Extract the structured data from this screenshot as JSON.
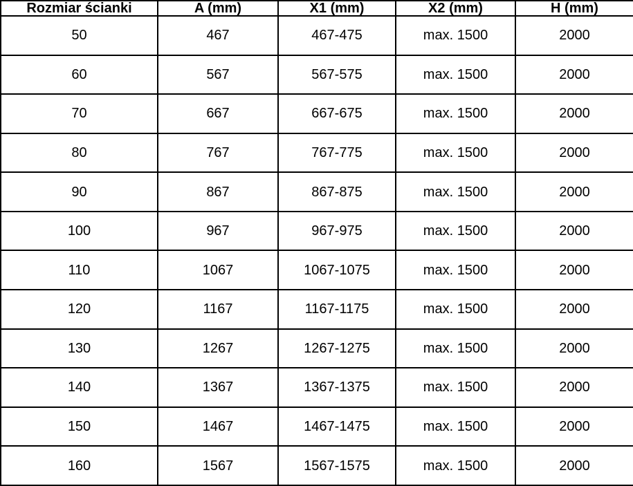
{
  "colors": {
    "border": "#000000",
    "background": "#ffffff",
    "text": "#000000"
  },
  "table": {
    "columns": [
      "Rozmiar ścianki",
      "A (mm)",
      "X1 (mm)",
      "X2 (mm)",
      "H (mm)"
    ],
    "rows": [
      [
        "50",
        "467",
        "467-475",
        "max. 1500",
        "2000"
      ],
      [
        "60",
        "567",
        "567-575",
        "max. 1500",
        "2000"
      ],
      [
        "70",
        "667",
        "667-675",
        "max. 1500",
        "2000"
      ],
      [
        "80",
        "767",
        "767-775",
        "max. 1500",
        "2000"
      ],
      [
        "90",
        "867",
        "867-875",
        "max. 1500",
        "2000"
      ],
      [
        "100",
        "967",
        "967-975",
        "max. 1500",
        "2000"
      ],
      [
        "110",
        "1067",
        "1067-1075",
        "max. 1500",
        "2000"
      ],
      [
        "120",
        "1167",
        "1167-1175",
        "max. 1500",
        "2000"
      ],
      [
        "130",
        "1267",
        "1267-1275",
        "max. 1500",
        "2000"
      ],
      [
        "140",
        "1367",
        "1367-1375",
        "max. 1500",
        "2000"
      ],
      [
        "150",
        "1467",
        "1467-1475",
        "max. 1500",
        "2000"
      ],
      [
        "160",
        "1567",
        "1567-1575",
        "max. 1500",
        "2000"
      ]
    ]
  },
  "chart_data": {
    "type": "table",
    "title": "",
    "columns": [
      "Rozmiar ścianki",
      "A (mm)",
      "X1 (mm)",
      "X2 (mm)",
      "H (mm)"
    ],
    "rows": [
      [
        "50",
        "467",
        "467-475",
        "max. 1500",
        "2000"
      ],
      [
        "60",
        "567",
        "567-575",
        "max. 1500",
        "2000"
      ],
      [
        "70",
        "667",
        "667-675",
        "max. 1500",
        "2000"
      ],
      [
        "80",
        "767",
        "767-775",
        "max. 1500",
        "2000"
      ],
      [
        "90",
        "867",
        "867-875",
        "max. 1500",
        "2000"
      ],
      [
        "100",
        "967",
        "967-975",
        "max. 1500",
        "2000"
      ],
      [
        "110",
        "1067",
        "1067-1075",
        "max. 1500",
        "2000"
      ],
      [
        "120",
        "1167",
        "1167-1175",
        "max. 1500",
        "2000"
      ],
      [
        "130",
        "1267",
        "1267-1275",
        "max. 1500",
        "2000"
      ],
      [
        "140",
        "1367",
        "1367-1375",
        "max. 1500",
        "2000"
      ],
      [
        "150",
        "1467",
        "1467-1475",
        "max. 1500",
        "2000"
      ],
      [
        "160",
        "1567",
        "1567-1575",
        "max. 1500",
        "2000"
      ]
    ]
  }
}
